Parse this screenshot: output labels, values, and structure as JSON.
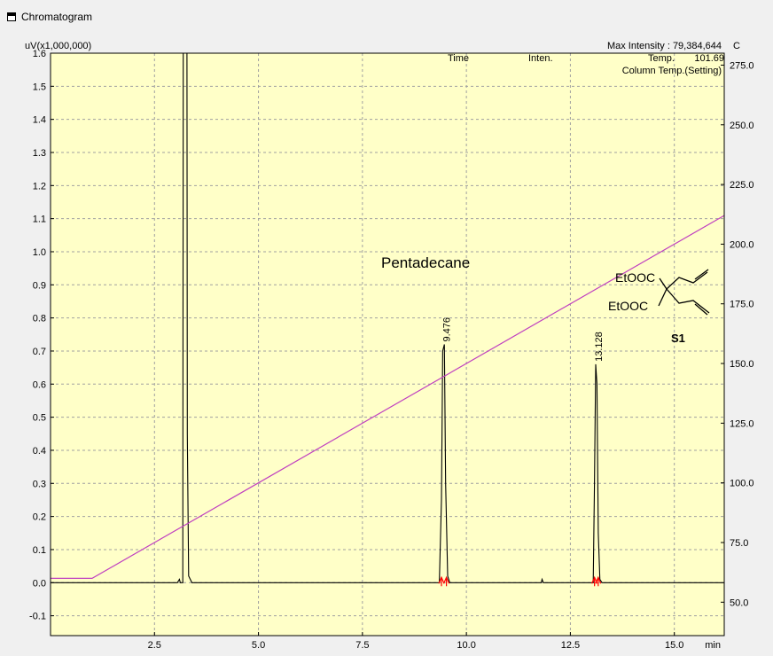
{
  "window": {
    "title": "Chromatogram"
  },
  "header": {
    "y_unit_label": "uV(x1,000,000)",
    "max_intensity": "Max Intensity : 79,384,644",
    "y2_unit_label": "C",
    "col_time": "Time",
    "col_inten": "Inten.",
    "col_temp": "Temp.",
    "col_temp_value": "101.69",
    "legend_temp": "Column Temp.(Setting)"
  },
  "annotations": {
    "compound_pentadecane": "Pentadecane",
    "compound_s1_label": "S1",
    "s1_group_top": "EtOOC",
    "s1_group_bottom": "EtOOC"
  },
  "colors": {
    "plot_bg": "#ffffc8",
    "trace": "#000000",
    "temp_line": "#c040c0",
    "legend_text": "#c000c0",
    "marker": "#ff0000",
    "grid": "#a0a0a0"
  },
  "chart_data": {
    "type": "line",
    "xlabel": "min",
    "xlim": [
      0,
      16.2
    ],
    "ylim": [
      -0.16,
      1.6
    ],
    "y2lim": [
      36.0,
      280.0
    ],
    "grid": true,
    "x_ticks": [
      "2.5",
      "5.0",
      "7.5",
      "10.0",
      "12.5",
      "15.0"
    ],
    "y_ticks": [
      "-0.1",
      "0.0",
      "0.1",
      "0.2",
      "0.3",
      "0.4",
      "0.5",
      "0.6",
      "0.7",
      "0.8",
      "0.9",
      "1.0",
      "1.1",
      "1.2",
      "1.3",
      "1.4",
      "1.5",
      "1.6"
    ],
    "y2_ticks": [
      "50.0",
      "75.0",
      "100.0",
      "125.0",
      "150.0",
      "175.0",
      "200.0",
      "225.0",
      "250.0",
      "275.0"
    ],
    "series": [
      {
        "name": "",
        "axis": "left",
        "points": [
          [
            0,
            0.0
          ],
          [
            3.05,
            0.0
          ],
          [
            3.1,
            0.01
          ],
          [
            3.12,
            0.0
          ],
          [
            3.18,
            0.0
          ],
          [
            3.19,
            1.6
          ],
          [
            3.28,
            1.6
          ],
          [
            3.29,
            0.45
          ],
          [
            3.32,
            0.02
          ],
          [
            3.4,
            0.0
          ],
          [
            9.35,
            0.0
          ],
          [
            9.4,
            0.25
          ],
          [
            9.43,
            0.7
          ],
          [
            9.47,
            0.72
          ],
          [
            9.5,
            0.3
          ],
          [
            9.55,
            0.02
          ],
          [
            9.6,
            0.0
          ],
          [
            11.8,
            0.0
          ],
          [
            11.82,
            0.01
          ],
          [
            11.85,
            0.0
          ],
          [
            13.05,
            0.0
          ],
          [
            13.08,
            0.3
          ],
          [
            13.11,
            0.66
          ],
          [
            13.14,
            0.6
          ],
          [
            13.17,
            0.15
          ],
          [
            13.21,
            0.01
          ],
          [
            13.26,
            0.0
          ],
          [
            16.2,
            0.0
          ]
        ]
      },
      {
        "name": "Column Temp.(Setting)",
        "axis": "right",
        "points": [
          [
            0,
            60.0
          ],
          [
            1.0,
            60.0
          ],
          [
            16.2,
            212.0
          ]
        ]
      }
    ],
    "peaks": [
      {
        "label": "9.476",
        "x": 9.476,
        "y": 0.72,
        "start": 9.4,
        "end": 9.52
      },
      {
        "label": "13.128",
        "x": 13.128,
        "y": 0.66,
        "start": 13.08,
        "end": 13.17
      }
    ]
  }
}
